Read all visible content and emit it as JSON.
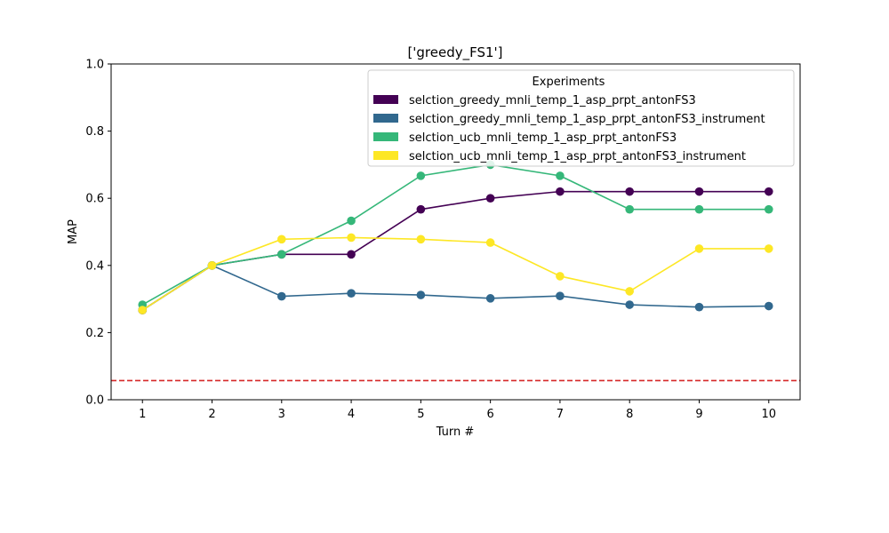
{
  "chart_data": {
    "type": "line",
    "title": "['greedy_FS1']",
    "xlabel": "Turn #",
    "ylabel": "MAP",
    "x": [
      1,
      2,
      3,
      4,
      5,
      6,
      7,
      8,
      9,
      10
    ],
    "xlim": [
      0.55,
      10.45
    ],
    "ylim": [
      0.0,
      1.0
    ],
    "yticks": [
      0.0,
      0.2,
      0.4,
      0.6,
      0.8,
      1.0
    ],
    "ytick_labels": [
      "0.0",
      "0.2",
      "0.4",
      "0.6",
      "0.8",
      "1.0"
    ],
    "xtick_labels": [
      "1",
      "2",
      "3",
      "4",
      "5",
      "6",
      "7",
      "8",
      "9",
      "10"
    ],
    "grid": false,
    "legend": {
      "title": "Experiments",
      "placement": "top-right"
    },
    "series": [
      {
        "name": "selction_greedy_mnli_temp_1_asp_prpt_antonFS3",
        "color": "#440154",
        "values": [
          0.267,
          0.4,
          0.433,
          0.433,
          0.567,
          0.6,
          0.62,
          0.62,
          0.62,
          0.62
        ]
      },
      {
        "name": "selction_greedy_mnli_temp_1_asp_prpt_antonFS3_instrument",
        "color": "#31688e",
        "values": [
          0.267,
          0.4,
          0.308,
          0.317,
          0.312,
          0.302,
          0.309,
          0.283,
          0.276,
          0.279
        ]
      },
      {
        "name": "selction_ucb_mnli_temp_1_asp_prpt_antonFS3",
        "color": "#35b779",
        "values": [
          0.283,
          0.4,
          0.433,
          0.533,
          0.667,
          0.7,
          0.667,
          0.567,
          0.567,
          0.567
        ]
      },
      {
        "name": "selction_ucb_mnli_temp_1_asp_prpt_antonFS3_instrument",
        "color": "#fde725",
        "values": [
          0.267,
          0.4,
          0.478,
          0.483,
          0.478,
          0.468,
          0.368,
          0.323,
          0.45,
          0.45
        ]
      }
    ],
    "reference_line": {
      "y": 0.057,
      "color": "#d62728",
      "style": "dashed"
    }
  }
}
